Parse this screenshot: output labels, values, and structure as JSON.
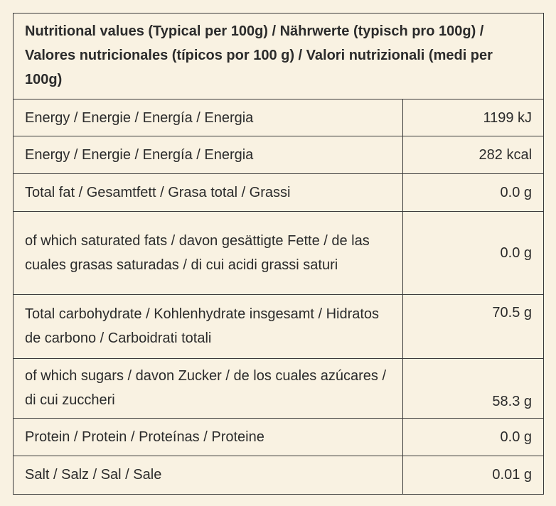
{
  "header": {
    "title": "Nutritional values (Typical per 100g) / Nährwerte (typisch pro 100g) / Valores nutricionales (típicos por 100 g) / Valori nutrizionali (medi per 100g)"
  },
  "table": {
    "rows": [
      [
        "Energy / Energie / Energía / Energia",
        "1199 kJ"
      ],
      [
        "Energy / Energie / Energía / Energia",
        "282 kcal"
      ],
      [
        "Total fat / Gesamtfett / Grasa total / Grassi",
        "0.0 g"
      ],
      [
        "of which saturated fats /  davon gesättigte Fette / de las cuales grasas saturadas / di cui acidi grassi saturi",
        "0.0 g"
      ],
      [
        "Total carbohydrate / Kohlenhydrate insgesamt / Hidratos de carbono / Carboidrati totali",
        "70.5 g"
      ],
      [
        "of which sugars / davon Zucker / de los cuales azúcares / di cui zuccheri",
        "58.3 g"
      ],
      [
        "Protein / Protein / Proteínas / Proteine",
        "0.0 g"
      ],
      [
        "Salt / Salz / Sal / Sale",
        "0.01 g"
      ]
    ]
  }
}
